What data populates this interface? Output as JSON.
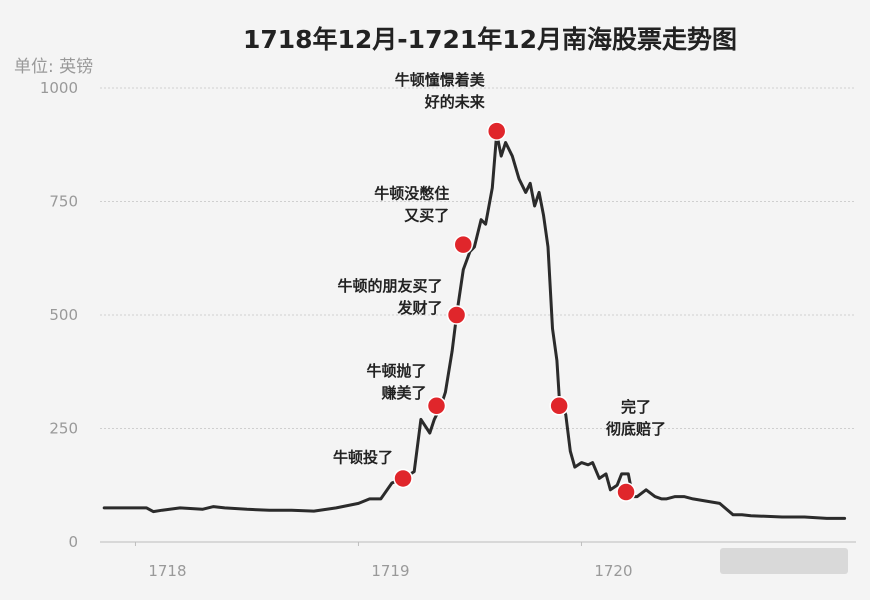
{
  "chart_data": {
    "type": "line",
    "title": "1718年12月-1721年12月南海股票走势图",
    "unit_label": "单位: 英镑",
    "x_ticks": [
      {
        "label": "1718",
        "value": 1718.0
      },
      {
        "label": "1719",
        "value": 1719.0
      },
      {
        "label": "1720",
        "value": 1720.0
      }
    ],
    "y_ticks": [
      0,
      250,
      500,
      750,
      1000
    ],
    "xlim": [
      1717.85,
      1721.2
    ],
    "ylim": [
      0,
      1000
    ],
    "grid": true,
    "series": [
      {
        "x": [
          1717.86,
          1717.95,
          1718.05,
          1718.08,
          1718.12,
          1718.2,
          1718.3,
          1718.35,
          1718.4,
          1718.5,
          1718.6,
          1718.7,
          1718.8,
          1718.9,
          1719.0,
          1719.05,
          1719.1,
          1719.15,
          1719.2,
          1719.25,
          1719.28,
          1719.32,
          1719.34,
          1719.37,
          1719.39,
          1719.42,
          1719.44,
          1719.47,
          1719.5,
          1719.52,
          1719.55,
          1719.57,
          1719.6,
          1719.62,
          1719.64,
          1719.66,
          1719.69,
          1719.72,
          1719.75,
          1719.77,
          1719.79,
          1719.81,
          1719.83,
          1719.85,
          1719.87,
          1719.89,
          1719.9,
          1719.93,
          1719.95,
          1719.97,
          1720.0,
          1720.03,
          1720.05,
          1720.08,
          1720.11,
          1720.13,
          1720.16,
          1720.18,
          1720.21,
          1720.23,
          1720.25,
          1720.29,
          1720.33,
          1720.36,
          1720.38,
          1720.42,
          1720.46,
          1720.5,
          1720.56,
          1720.62,
          1720.68,
          1720.72,
          1720.76,
          1720.8,
          1720.9,
          1721.0,
          1721.1,
          1721.18
        ],
        "y": [
          75,
          75,
          75,
          67,
          70,
          75,
          72,
          78,
          75,
          72,
          70,
          70,
          68,
          75,
          85,
          95,
          95,
          130,
          140,
          155,
          270,
          240,
          270,
          300,
          330,
          420,
          500,
          600,
          640,
          650,
          710,
          700,
          780,
          900,
          850,
          880,
          850,
          800,
          770,
          790,
          740,
          770,
          720,
          650,
          470,
          400,
          320,
          280,
          200,
          165,
          175,
          170,
          175,
          140,
          150,
          115,
          125,
          150,
          150,
          100,
          100,
          115,
          100,
          95,
          95,
          100,
          100,
          95,
          90,
          85,
          60,
          60,
          58,
          57,
          55,
          55,
          52,
          52
        ]
      }
    ],
    "highlight_points": [
      {
        "x": 1719.2,
        "y": 140,
        "label": [
          "牛顿投了"
        ]
      },
      {
        "x": 1719.35,
        "y": 300,
        "label": [
          "牛顿抛了",
          "赚美了"
        ]
      },
      {
        "x": 1719.44,
        "y": 500,
        "label": [
          "牛顿的朋友买了",
          "发财了"
        ]
      },
      {
        "x": 1719.47,
        "y": 655,
        "label": [
          "牛顿没憋住",
          "又买了"
        ]
      },
      {
        "x": 1719.62,
        "y": 905,
        "label": [
          "牛顿憧憬着美",
          "好的未来"
        ]
      },
      {
        "x": 1719.9,
        "y": 300,
        "label": []
      },
      {
        "x": 1720.2,
        "y": 110,
        "label": [
          "完了",
          "彻底赔了"
        ]
      }
    ],
    "colors": {
      "line": "#2b2b2b",
      "point": "#e0262b",
      "grid": "#cfcfcf",
      "text": "#222222",
      "muted": "#999999"
    }
  }
}
